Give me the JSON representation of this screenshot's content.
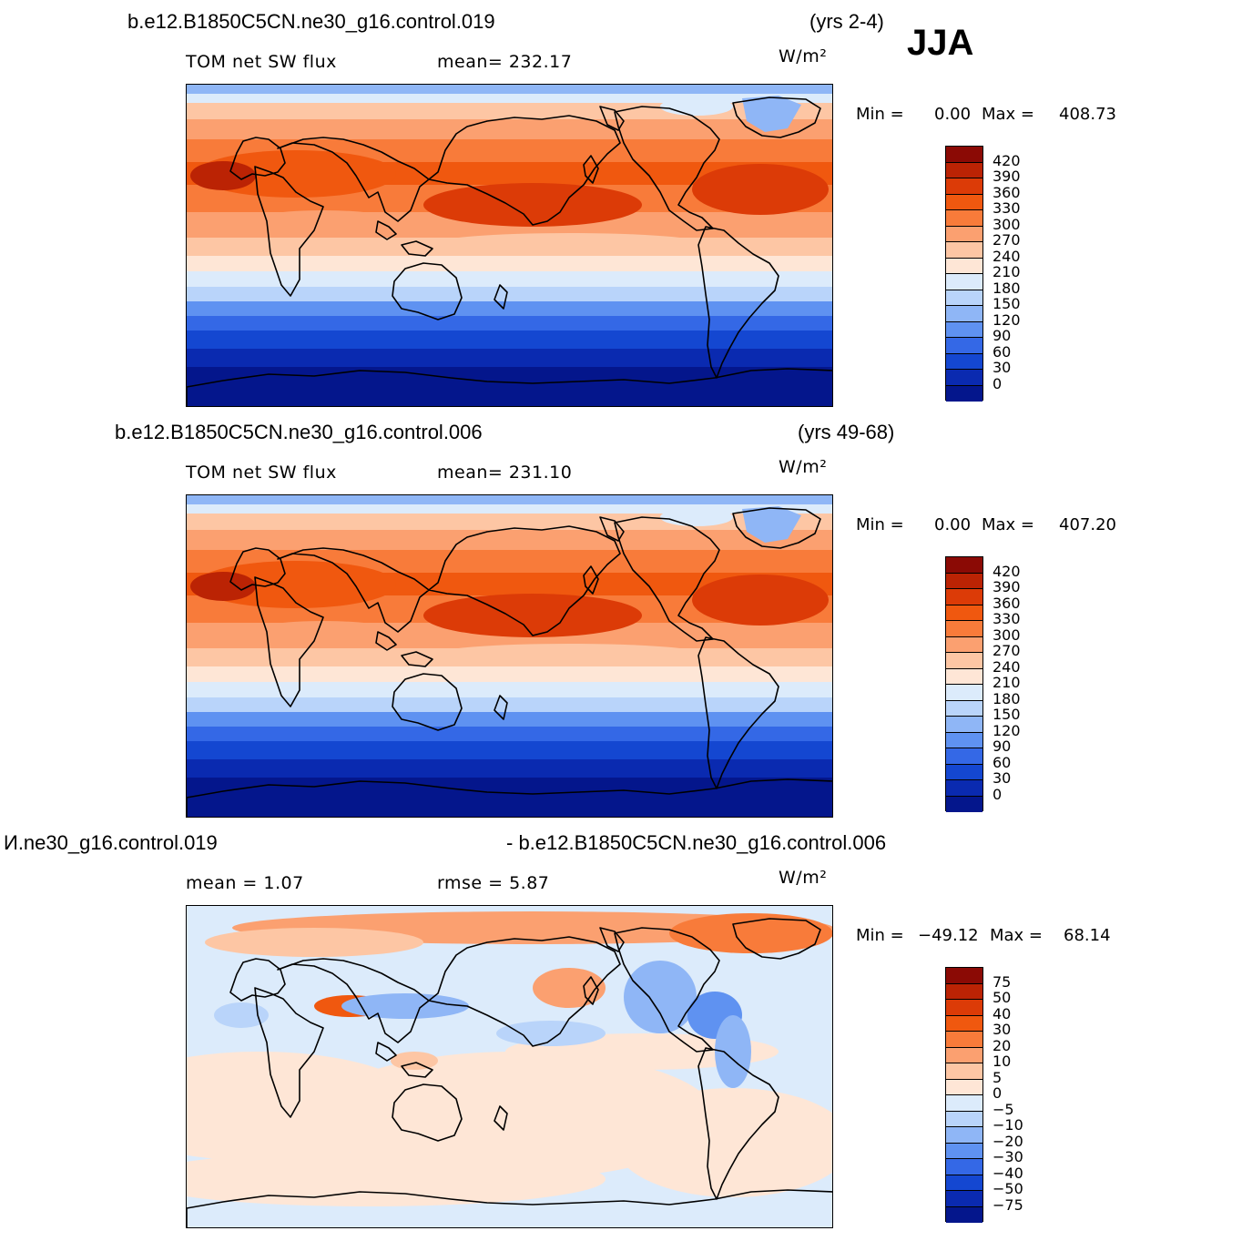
{
  "season": "JJA",
  "panels": [
    {
      "id": "top",
      "case": "b.e12.B1850C5CN.ne30_g16.control.019",
      "years": "(yrs 2-4)",
      "left_label": "TOM  net  SW  flux",
      "stat_label": "mean=  232.17",
      "units": "W/m²",
      "min_label": "Min  =",
      "min_value": "0.00",
      "max_label": "Max  =",
      "max_value": "408.73",
      "colorbar": {
        "labels": [
          "420",
          "390",
          "360",
          "330",
          "300",
          "270",
          "240",
          "210",
          "180",
          "150",
          "120",
          "90",
          "60",
          "30",
          "0"
        ],
        "colors": [
          "#8b0a05",
          "#bb2304",
          "#dc3b07",
          "#f0580f",
          "#f87b3a",
          "#fba070",
          "#fdc6a4",
          "#fee6d6",
          "#dcebfb",
          "#b9d4fa",
          "#8fb6f6",
          "#5f92f1",
          "#3468e6",
          "#1447d1",
          "#0a2ab0",
          "#04168c"
        ]
      },
      "map_style": "absolute"
    },
    {
      "id": "middle",
      "case": "b.e12.B1850C5CN.ne30_g16.control.006",
      "years": "(yrs 49-68)",
      "left_label": "TOM  net  SW  flux",
      "stat_label": "mean=  231.10",
      "units": "W/m²",
      "min_label": "Min  =",
      "min_value": "0.00",
      "max_label": "Max  =",
      "max_value": "407.20",
      "colorbar": {
        "labels": [
          "420",
          "390",
          "360",
          "330",
          "300",
          "270",
          "240",
          "210",
          "180",
          "150",
          "120",
          "90",
          "60",
          "30",
          "0"
        ],
        "colors": [
          "#8b0a05",
          "#bb2304",
          "#dc3b07",
          "#f0580f",
          "#f87b3a",
          "#fba070",
          "#fdc6a4",
          "#fee6d6",
          "#dcebfb",
          "#b9d4fa",
          "#8fb6f6",
          "#5f92f1",
          "#3468e6",
          "#1447d1",
          "#0a2ab0",
          "#04168c"
        ]
      },
      "map_style": "absolute"
    },
    {
      "id": "bottom",
      "case_left": "И.ne30_g16.control.019",
      "case_right": "- b.e12.B1850C5CN.ne30_g16.control.006",
      "left_label": "mean  =      1.07",
      "stat_label": "rmse  =     5.87",
      "units": "W/m²",
      "min_label": "Min  =",
      "min_value": "−49.12",
      "max_label": "Max  =",
      "max_value": "68.14",
      "colorbar": {
        "labels": [
          "75",
          "50",
          "40",
          "30",
          "20",
          "10",
          "5",
          "0",
          "−5",
          "−10",
          "−20",
          "−30",
          "−40",
          "−50",
          "−75"
        ],
        "colors": [
          "#8b0a05",
          "#bb2304",
          "#dc3b07",
          "#f0580f",
          "#f87b3a",
          "#fba070",
          "#fdc6a4",
          "#fee6d6",
          "#dcebfb",
          "#b9d4fa",
          "#8fb6f6",
          "#5f92f1",
          "#3468e6",
          "#1447d1",
          "#0a2ab0",
          "#04168c"
        ]
      },
      "map_style": "difference"
    }
  ]
}
